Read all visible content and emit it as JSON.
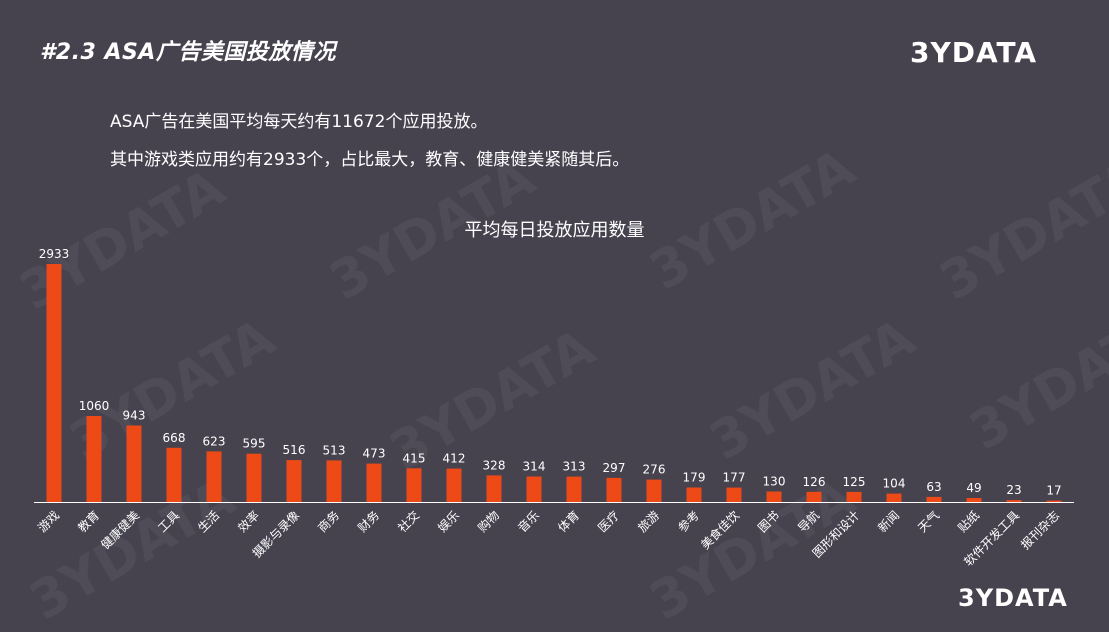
{
  "slide": {
    "title": "#2.3 ASA广告美国投放情况",
    "logo": "3YDATA",
    "intro_lines": [
      "ASA广告在美国平均每天约有11672个应用投放。",
      "其中游戏类应用约有2933个，占比最大，教育、健康健美紧随其后。"
    ],
    "bottom_logo": "3YDATA"
  },
  "colors": {
    "background": "#46434f",
    "bar": "#ee4a17",
    "axis": "#ffffff",
    "text": "#ffffff"
  },
  "chart_data": {
    "type": "bar",
    "title": "平均每日投放应用数量",
    "xlabel": "",
    "ylabel": "",
    "categories": [
      "游戏",
      "教育",
      "健康健美",
      "工具",
      "生活",
      "效率",
      "摄影与录像",
      "商务",
      "财务",
      "社交",
      "娱乐",
      "购物",
      "音乐",
      "体育",
      "医疗",
      "旅游",
      "参考",
      "美食佳饮",
      "图书",
      "导航",
      "图形和设计",
      "新闻",
      "天气",
      "贴纸",
      "软件开发工具",
      "报刊杂志"
    ],
    "values": [
      2933,
      1060,
      943,
      668,
      623,
      595,
      516,
      513,
      473,
      415,
      412,
      328,
      314,
      313,
      297,
      276,
      179,
      177,
      130,
      126,
      125,
      104,
      63,
      49,
      23,
      17
    ],
    "ylim": [
      0,
      3000
    ],
    "grid": false,
    "legend": "none"
  }
}
